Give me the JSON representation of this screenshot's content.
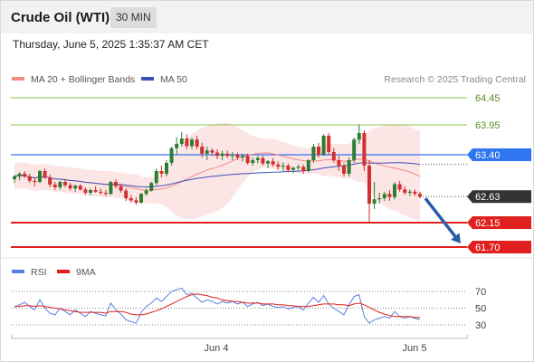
{
  "header": {
    "title": "Crude Oil (WTI)",
    "timeframe": "30 MIN"
  },
  "timestamp": "Thursday, June 5, 2025 1:35:37 AM CET",
  "copyright": "Research © 2025 Trading Central",
  "colors": {
    "up": "#2e7d32",
    "down": "#d32f2f",
    "band_fill": "#fbe0e0",
    "ma20": "#f28b82",
    "ma50": "#3f51b5",
    "support": "#e0201f",
    "resistance": "#8bc34a",
    "pivot": "#2f74f0",
    "last": "#333333",
    "forecast_arrow": "#2b5aa8",
    "rsi": "#5b7fe0",
    "rsi_ma": "#e0201f"
  },
  "chart_data": [
    {
      "type": "candlestick",
      "legend": [
        {
          "name": "MA 20 + Bollinger Bands",
          "color": "#f28b82"
        },
        {
          "name": "MA 50",
          "color": "#3f51b5"
        }
      ],
      "x_tick_labels": [
        "Jun 4",
        "Jun 5"
      ],
      "ylim": [
        61.5,
        64.65
      ],
      "y_tick_labels": [],
      "price_levels": [
        {
          "value": 64.45,
          "label": "64.45",
          "kind": "resistance",
          "badge": false
        },
        {
          "value": 63.95,
          "label": "63.95",
          "kind": "resistance",
          "badge": false
        },
        {
          "value": 63.4,
          "label": "63.40",
          "kind": "pivot",
          "badge": true
        },
        {
          "value": 62.63,
          "label": "62.63",
          "kind": "last",
          "badge": true
        },
        {
          "value": 62.15,
          "label": "62.15",
          "kind": "support",
          "badge": true
        },
        {
          "value": 61.7,
          "label": "61.70",
          "kind": "support",
          "badge": true
        }
      ],
      "forecast": {
        "from": 62.63,
        "to": 61.7
      },
      "candles": [
        [
          62.95,
          63.03,
          62.88,
          63.0
        ],
        [
          63.0,
          63.08,
          62.93,
          63.05
        ],
        [
          63.05,
          63.1,
          62.97,
          63.0
        ],
        [
          63.0,
          63.05,
          62.88,
          62.92
        ],
        [
          62.92,
          62.98,
          62.82,
          62.9
        ],
        [
          62.9,
          63.12,
          62.88,
          63.1
        ],
        [
          63.1,
          63.15,
          62.95,
          62.98
        ],
        [
          62.98,
          63.03,
          62.8,
          62.85
        ],
        [
          62.85,
          62.9,
          62.75,
          62.8
        ],
        [
          62.8,
          62.92,
          62.76,
          62.9
        ],
        [
          62.9,
          62.95,
          62.8,
          62.84
        ],
        [
          62.84,
          62.88,
          62.74,
          62.78
        ],
        [
          62.78,
          62.85,
          62.72,
          62.83
        ],
        [
          62.83,
          62.86,
          62.74,
          62.76
        ],
        [
          62.76,
          62.8,
          62.66,
          62.7
        ],
        [
          62.7,
          62.78,
          62.65,
          62.75
        ],
        [
          62.75,
          62.82,
          62.7,
          62.72
        ],
        [
          62.72,
          62.78,
          62.66,
          62.7
        ],
        [
          62.7,
          62.75,
          62.64,
          62.68
        ],
        [
          62.68,
          62.92,
          62.66,
          62.9
        ],
        [
          62.9,
          62.95,
          62.78,
          62.82
        ],
        [
          62.82,
          62.85,
          62.7,
          62.74
        ],
        [
          62.74,
          62.78,
          62.55,
          62.6
        ],
        [
          62.6,
          62.66,
          62.52,
          62.56
        ],
        [
          62.56,
          62.62,
          62.48,
          62.52
        ],
        [
          62.52,
          62.7,
          62.5,
          62.68
        ],
        [
          62.68,
          62.78,
          62.64,
          62.74
        ],
        [
          62.74,
          62.9,
          62.72,
          62.88
        ],
        [
          62.88,
          63.15,
          62.85,
          63.1
        ],
        [
          63.1,
          63.2,
          62.98,
          63.05
        ],
        [
          63.05,
          63.3,
          63.0,
          63.25
        ],
        [
          63.25,
          63.55,
          63.2,
          63.52
        ],
        [
          63.52,
          63.72,
          63.4,
          63.6
        ],
        [
          63.6,
          63.82,
          63.55,
          63.7
        ],
        [
          63.7,
          63.78,
          63.5,
          63.56
        ],
        [
          63.56,
          63.72,
          63.5,
          63.68
        ],
        [
          63.68,
          63.75,
          63.5,
          63.55
        ],
        [
          63.55,
          63.62,
          63.35,
          63.42
        ],
        [
          63.42,
          63.55,
          63.3,
          63.48
        ],
        [
          63.48,
          63.52,
          63.38,
          63.44
        ],
        [
          63.44,
          63.5,
          63.32,
          63.38
        ],
        [
          63.38,
          63.48,
          63.3,
          63.42
        ],
        [
          63.42,
          63.48,
          63.34,
          63.38
        ],
        [
          63.38,
          63.45,
          63.3,
          63.4
        ],
        [
          63.4,
          63.44,
          63.3,
          63.35
        ],
        [
          63.35,
          63.42,
          63.28,
          63.38
        ],
        [
          63.38,
          63.42,
          63.22,
          63.25
        ],
        [
          63.25,
          63.35,
          63.2,
          63.3
        ],
        [
          63.3,
          63.38,
          63.24,
          63.34
        ],
        [
          63.34,
          63.38,
          63.2,
          63.24
        ],
        [
          63.24,
          63.3,
          63.15,
          63.28
        ],
        [
          63.28,
          63.34,
          63.18,
          63.22
        ],
        [
          63.22,
          63.28,
          63.12,
          63.18
        ],
        [
          63.18,
          63.26,
          63.1,
          63.2
        ],
        [
          63.2,
          63.24,
          63.08,
          63.12
        ],
        [
          63.12,
          63.18,
          63.06,
          63.16
        ],
        [
          63.16,
          63.22,
          63.12,
          63.18
        ],
        [
          63.18,
          63.22,
          63.05,
          63.1
        ],
        [
          63.1,
          63.32,
          63.08,
          63.3
        ],
        [
          63.3,
          63.6,
          63.25,
          63.55
        ],
        [
          63.55,
          63.62,
          63.35,
          63.4
        ],
        [
          63.4,
          63.78,
          63.38,
          63.75
        ],
        [
          63.75,
          63.8,
          63.4,
          63.45
        ],
        [
          63.45,
          63.52,
          63.25,
          63.3
        ],
        [
          63.3,
          63.38,
          63.1,
          63.2
        ],
        [
          63.2,
          63.25,
          63.0,
          63.05
        ],
        [
          63.05,
          63.35,
          63.0,
          63.3
        ],
        [
          63.3,
          63.72,
          63.25,
          63.68
        ],
        [
          63.68,
          63.96,
          63.6,
          63.8
        ],
        [
          63.8,
          63.85,
          63.1,
          63.2
        ],
        [
          63.2,
          63.3,
          62.15,
          62.5
        ],
        [
          62.5,
          62.9,
          62.4,
          62.58
        ],
        [
          62.58,
          62.7,
          62.5,
          62.6
        ],
        [
          62.6,
          62.72,
          62.55,
          62.68
        ],
        [
          62.68,
          62.75,
          62.55,
          62.62
        ],
        [
          62.62,
          62.9,
          62.58,
          62.86
        ],
        [
          62.86,
          62.92,
          62.72,
          62.76
        ],
        [
          62.76,
          62.82,
          62.66,
          62.7
        ],
        [
          62.7,
          62.76,
          62.64,
          62.72
        ],
        [
          62.72,
          62.76,
          62.64,
          62.68
        ],
        [
          62.68,
          62.72,
          62.6,
          62.63
        ]
      ]
    },
    {
      "type": "line",
      "legend": [
        {
          "name": "RSI",
          "color": "#5b7fe0"
        },
        {
          "name": "9MA",
          "color": "#e0201f"
        }
      ],
      "ylim": [
        20,
        80
      ],
      "y_tick_labels": [
        "70",
        "50",
        "30"
      ],
      "reference_levels": [
        70,
        50,
        30
      ],
      "series": [
        {
          "name": "RSI",
          "values": [
            51,
            54,
            57,
            52,
            48,
            60,
            50,
            44,
            42,
            50,
            46,
            42,
            48,
            44,
            40,
            46,
            44,
            42,
            41,
            56,
            48,
            43,
            36,
            34,
            32,
            45,
            52,
            56,
            62,
            58,
            64,
            70,
            72,
            74,
            66,
            68,
            62,
            57,
            60,
            58,
            55,
            58,
            56,
            58,
            55,
            57,
            52,
            55,
            57,
            53,
            55,
            52,
            51,
            52,
            49,
            51,
            52,
            48,
            56,
            63,
            57,
            65,
            55,
            50,
            46,
            42,
            54,
            64,
            66,
            40,
            32,
            36,
            38,
            40,
            38,
            46,
            40,
            38,
            40,
            38,
            36
          ]
        },
        {
          "name": "9MA",
          "values": [
            52,
            52,
            53,
            53,
            52,
            53,
            52,
            51,
            50,
            49,
            48,
            47,
            46,
            45,
            45,
            45,
            45,
            45,
            44,
            46,
            46,
            46,
            45,
            43,
            42,
            42,
            43,
            45,
            47,
            49,
            52,
            55,
            58,
            61,
            64,
            66,
            67,
            66,
            65,
            63,
            62,
            60,
            59,
            58,
            58,
            57,
            56,
            56,
            56,
            55,
            55,
            55,
            54,
            54,
            53,
            53,
            52,
            52,
            52,
            53,
            54,
            55,
            55,
            55,
            54,
            54,
            53,
            55,
            56,
            54,
            51,
            48,
            45,
            43,
            41,
            40,
            40,
            40,
            40,
            39,
            39
          ]
        }
      ]
    }
  ]
}
